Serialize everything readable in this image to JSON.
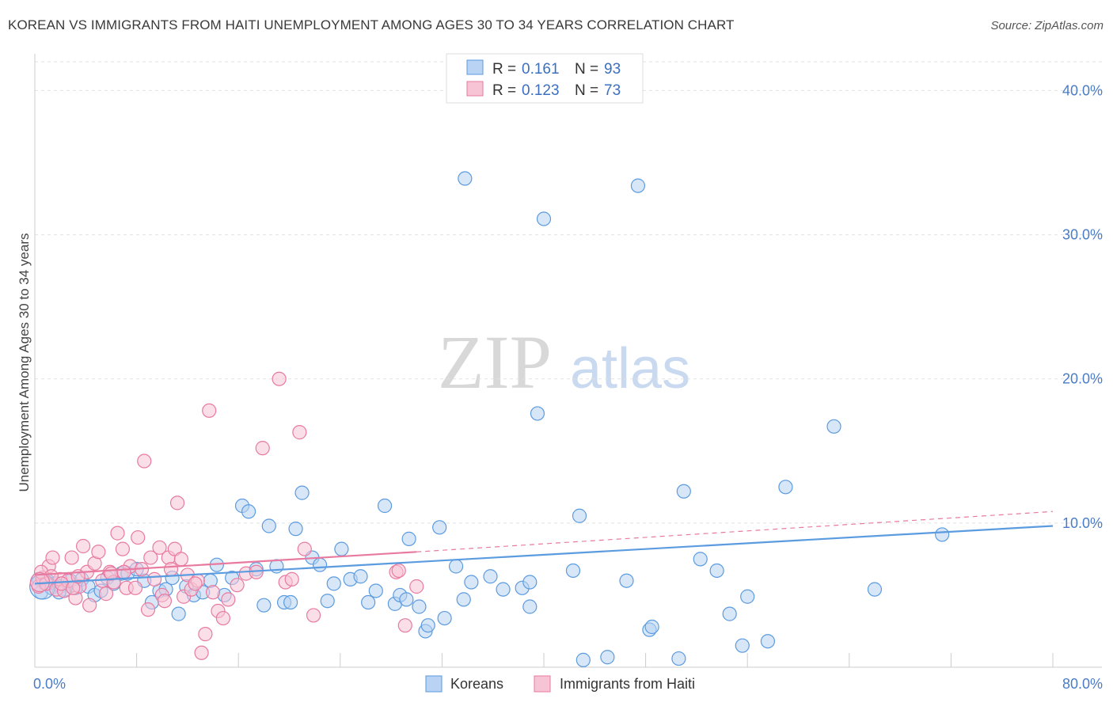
{
  "title": "KOREAN VS IMMIGRANTS FROM HAITI UNEMPLOYMENT AMONG AGES 30 TO 34 YEARS CORRELATION CHART",
  "source": "Source: ZipAtlas.com",
  "watermark": {
    "zip": "ZIP",
    "atlas": "atlas"
  },
  "chart_data": {
    "type": "scatter",
    "title": "KOREAN VS IMMIGRANTS FROM HAITI UNEMPLOYMENT AMONG AGES 30 TO 34 YEARS CORRELATION CHART",
    "xlabel": "",
    "ylabel": "Unemployment Among Ages 30 to 34 years",
    "xlim": [
      0,
      80
    ],
    "ylim": [
      0,
      42
    ],
    "x_tick_labels": [
      "0.0%",
      "80.0%"
    ],
    "y_ticks": [
      10,
      20,
      30,
      40
    ],
    "y_tick_labels": [
      "10.0%",
      "20.0%",
      "30.0%",
      "40.0%"
    ],
    "grid": true,
    "legend_position": "top-center",
    "stats": [
      {
        "r_label": "R =",
        "r_value": "0.161",
        "n_label": "N =",
        "n_value": "93"
      },
      {
        "r_label": "R =",
        "r_value": "0.123",
        "n_label": "N =",
        "n_value": "73"
      }
    ],
    "series": [
      {
        "name": "Koreans",
        "color": "#5b9be0",
        "fill": "#b8d3f3",
        "trend": {
          "x": [
            0,
            80
          ],
          "y": [
            5.8,
            9.8
          ],
          "dashed": false
        },
        "points": [
          [
            0.5,
            5.2
          ],
          [
            0.8,
            5.8
          ],
          [
            1.0,
            6.0
          ],
          [
            1.3,
            5.5
          ],
          [
            1.6,
            5.8
          ],
          [
            2.0,
            5.6
          ],
          [
            2.4,
            5.4
          ],
          [
            2.8,
            6.0
          ],
          [
            3.2,
            5.5
          ],
          [
            3.7,
            6.1
          ],
          [
            4.2,
            5.6
          ],
          [
            4.7,
            5.0
          ],
          [
            5.2,
            5.3
          ],
          [
            5.7,
            6.2
          ],
          [
            6.2,
            5.8
          ],
          [
            6.8,
            6.5
          ],
          [
            7.3,
            6.5
          ],
          [
            8.0,
            6.8
          ],
          [
            8.6,
            6.0
          ],
          [
            9.2,
            4.5
          ],
          [
            9.8,
            5.3
          ],
          [
            10.3,
            5.4
          ],
          [
            10.8,
            6.2
          ],
          [
            11.3,
            3.7
          ],
          [
            11.9,
            5.6
          ],
          [
            12.5,
            5.0
          ],
          [
            13.2,
            5.2
          ],
          [
            13.8,
            6.0
          ],
          [
            14.3,
            7.1
          ],
          [
            14.9,
            5.0
          ],
          [
            15.5,
            6.2
          ],
          [
            16.3,
            11.2
          ],
          [
            16.8,
            10.8
          ],
          [
            17.4,
            6.8
          ],
          [
            18.0,
            4.3
          ],
          [
            18.4,
            9.8
          ],
          [
            19.0,
            7.0
          ],
          [
            19.6,
            4.5
          ],
          [
            20.1,
            4.5
          ],
          [
            20.5,
            9.6
          ],
          [
            21.0,
            12.1
          ],
          [
            21.8,
            7.6
          ],
          [
            22.4,
            7.1
          ],
          [
            23.0,
            4.6
          ],
          [
            23.5,
            5.8
          ],
          [
            24.1,
            8.2
          ],
          [
            24.8,
            6.1
          ],
          [
            25.6,
            6.3
          ],
          [
            26.2,
            4.5
          ],
          [
            26.8,
            5.3
          ],
          [
            27.5,
            11.2
          ],
          [
            28.3,
            4.4
          ],
          [
            28.7,
            5.0
          ],
          [
            29.2,
            4.7
          ],
          [
            29.4,
            8.9
          ],
          [
            30.2,
            4.2
          ],
          [
            30.7,
            2.5
          ],
          [
            30.9,
            2.9
          ],
          [
            31.8,
            9.7
          ],
          [
            32.2,
            3.4
          ],
          [
            33.1,
            7.0
          ],
          [
            33.7,
            4.7
          ],
          [
            34.3,
            5.9
          ],
          [
            33.8,
            33.9
          ],
          [
            35.8,
            6.3
          ],
          [
            36.8,
            5.4
          ],
          [
            38.3,
            5.5
          ],
          [
            38.9,
            5.9
          ],
          [
            38.9,
            4.2
          ],
          [
            39.5,
            17.6
          ],
          [
            40.0,
            31.1
          ],
          [
            42.3,
            6.7
          ],
          [
            42.8,
            10.5
          ],
          [
            43.1,
            0.5
          ],
          [
            45.0,
            0.7
          ],
          [
            46.5,
            6.0
          ],
          [
            47.4,
            33.4
          ],
          [
            48.3,
            2.6
          ],
          [
            48.5,
            2.8
          ],
          [
            50.6,
            0.6
          ],
          [
            51.0,
            12.2
          ],
          [
            52.3,
            7.5
          ],
          [
            53.6,
            6.7
          ],
          [
            54.6,
            3.7
          ],
          [
            55.6,
            1.5
          ],
          [
            56.0,
            4.9
          ],
          [
            57.6,
            1.8
          ],
          [
            59.0,
            12.5
          ],
          [
            62.8,
            16.7
          ],
          [
            66.0,
            5.4
          ],
          [
            71.3,
            9.2
          ],
          [
            0.3,
            6.1
          ],
          [
            1.9,
            5.2
          ]
        ]
      },
      {
        "name": "Immigrants from Haiti",
        "color": "#e87aa0",
        "fill": "#f7c4d6",
        "trend": {
          "x": [
            0,
            30
          ],
          "y": [
            6.4,
            8.0
          ],
          "dashed": false,
          "extension": {
            "x": [
              30,
              80
            ],
            "y": [
              8.0,
              10.8
            ],
            "dashed": true
          }
        },
        "points": [
          [
            0.3,
            5.6
          ],
          [
            0.6,
            6.2
          ],
          [
            0.9,
            5.8
          ],
          [
            1.1,
            7.0
          ],
          [
            1.4,
            7.6
          ],
          [
            1.7,
            5.4
          ],
          [
            2.0,
            6.1
          ],
          [
            2.3,
            5.3
          ],
          [
            2.6,
            6.0
          ],
          [
            2.9,
            7.6
          ],
          [
            3.2,
            4.8
          ],
          [
            3.5,
            5.6
          ],
          [
            3.8,
            8.4
          ],
          [
            4.1,
            6.6
          ],
          [
            4.3,
            4.3
          ],
          [
            4.7,
            7.2
          ],
          [
            5.0,
            8.0
          ],
          [
            5.3,
            6.0
          ],
          [
            5.6,
            5.1
          ],
          [
            5.9,
            6.6
          ],
          [
            6.2,
            5.9
          ],
          [
            6.5,
            9.3
          ],
          [
            6.9,
            8.2
          ],
          [
            7.2,
            5.5
          ],
          [
            7.5,
            7.0
          ],
          [
            7.9,
            5.5
          ],
          [
            8.1,
            9.0
          ],
          [
            8.4,
            6.8
          ],
          [
            8.6,
            14.3
          ],
          [
            8.9,
            4.0
          ],
          [
            9.1,
            7.6
          ],
          [
            9.4,
            6.1
          ],
          [
            9.8,
            8.3
          ],
          [
            10.0,
            5.0
          ],
          [
            10.2,
            4.6
          ],
          [
            10.5,
            7.6
          ],
          [
            10.7,
            6.8
          ],
          [
            11.0,
            8.2
          ],
          [
            11.2,
            11.4
          ],
          [
            11.5,
            7.5
          ],
          [
            11.7,
            4.9
          ],
          [
            12.0,
            6.4
          ],
          [
            12.3,
            5.4
          ],
          [
            12.8,
            6.0
          ],
          [
            13.1,
            1.0
          ],
          [
            13.4,
            2.3
          ],
          [
            13.7,
            17.8
          ],
          [
            14.4,
            3.9
          ],
          [
            14.8,
            3.4
          ],
          [
            15.2,
            4.7
          ],
          [
            15.9,
            5.7
          ],
          [
            16.6,
            6.5
          ],
          [
            17.4,
            6.6
          ],
          [
            17.9,
            15.2
          ],
          [
            19.2,
            20.0
          ],
          [
            19.7,
            5.9
          ],
          [
            20.2,
            6.1
          ],
          [
            20.8,
            16.3
          ],
          [
            21.2,
            8.2
          ],
          [
            21.9,
            3.6
          ],
          [
            28.4,
            6.6
          ],
          [
            29.1,
            2.9
          ],
          [
            30.0,
            5.6
          ],
          [
            28.6,
            6.7
          ],
          [
            0.5,
            6.6
          ],
          [
            1.3,
            6.3
          ],
          [
            2.1,
            5.8
          ],
          [
            3.0,
            5.5
          ],
          [
            3.4,
            6.3
          ],
          [
            6.0,
            6.5
          ],
          [
            7.0,
            6.6
          ],
          [
            12.6,
            5.8
          ],
          [
            14.0,
            5.2
          ]
        ]
      }
    ]
  },
  "legend": {
    "items": [
      {
        "label": "Koreans"
      },
      {
        "label": "Immigrants from Haiti"
      }
    ]
  }
}
